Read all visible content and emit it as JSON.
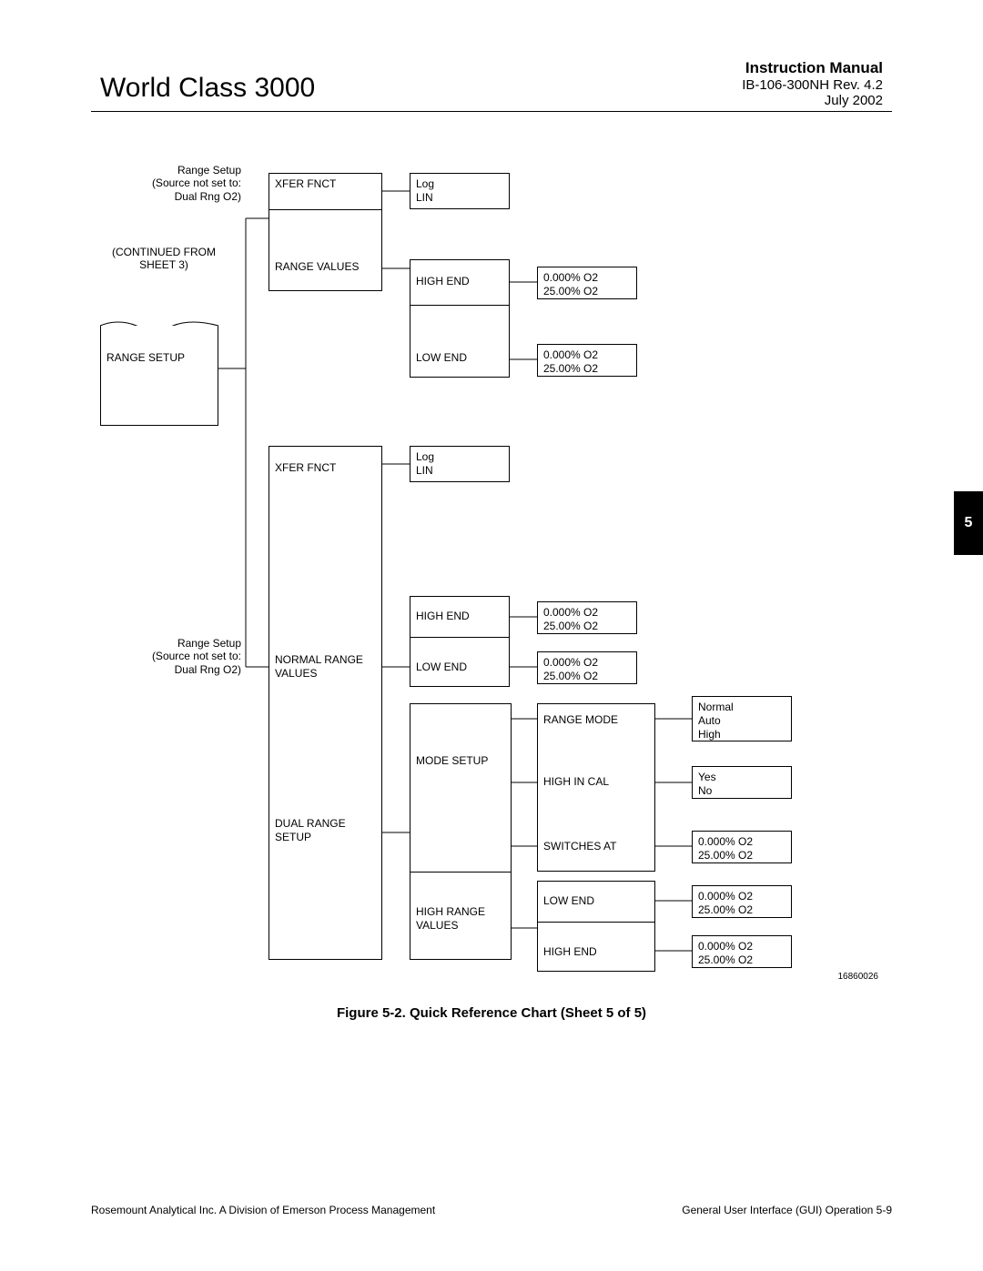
{
  "header": {
    "title": "World Class 3000",
    "manual": "Instruction Manual",
    "rev": "IB-106-300NH Rev. 4.2",
    "date": "July 2002"
  },
  "section_tab": "5",
  "caption": "Figure 5-2.  Quick Reference Chart (Sheet 5 of 5)",
  "fignum": "16860026",
  "footer": {
    "left": "Rosemount Analytical Inc.    A Division of Emerson Process Management",
    "right": "General User Interface (GUI) Operation    5-9"
  },
  "diagram": {
    "type": "tree",
    "colors": {
      "line": "#000000",
      "bg": "#ffffff"
    },
    "labels": {
      "range_setup_note_1": "Range Setup\n(Source not set to:\nDual Rng O2)",
      "continued": "(CONTINUED  FROM\nSHEET  3)",
      "range_setup_note_2": "Range Setup\n(Source not set to:\nDual Rng O2)"
    },
    "nodes": {
      "root": "RANGE  SETUP",
      "group1": {
        "xfer_fnct": "XFER  FNCT",
        "xfer_vals": "Log\nLIN",
        "range_values": "RANGE  VALUES",
        "high_end": "HIGH  END",
        "high_end_vals": "0.000%  O2\n25.00%  O2",
        "low_end": "LOW  END",
        "low_end_vals": "0.000%  O2\n25.00%  O2"
      },
      "group2": {
        "xfer_fnct": "XFER  FNCT",
        "xfer_vals": "Log\nLIN",
        "normal_range_values": "NORMAL  RANGE\nVALUES",
        "high_end": "HIGH  END",
        "high_end_vals": "0.000%  O2\n25.00%  O2",
        "low_end": "LOW  END",
        "low_end_vals": "0.000%  O2\n25.00%  O2",
        "dual_range_setup": "DUAL  RANGE\nSETUP",
        "mode_setup": "MODE  SETUP",
        "range_mode": "RANGE  MODE",
        "range_mode_vals": "Normal\nAuto\nHigh",
        "high_in_cal": "HIGH  IN  CAL",
        "high_in_cal_vals": "Yes\nNo",
        "switches_at": "SWITCHES  AT",
        "switches_at_vals": "0.000%  O2\n25.00%  O2",
        "high_range_values": "HIGH  RANGE\nVALUES",
        "hr_low_end": "LOW  END",
        "hr_low_end_vals": "0.000%  O2\n25.00%  O2",
        "hr_high_end": "HIGH  END",
        "hr_high_end_vals": "0.000%  O2\n25.00%  O2"
      }
    }
  }
}
